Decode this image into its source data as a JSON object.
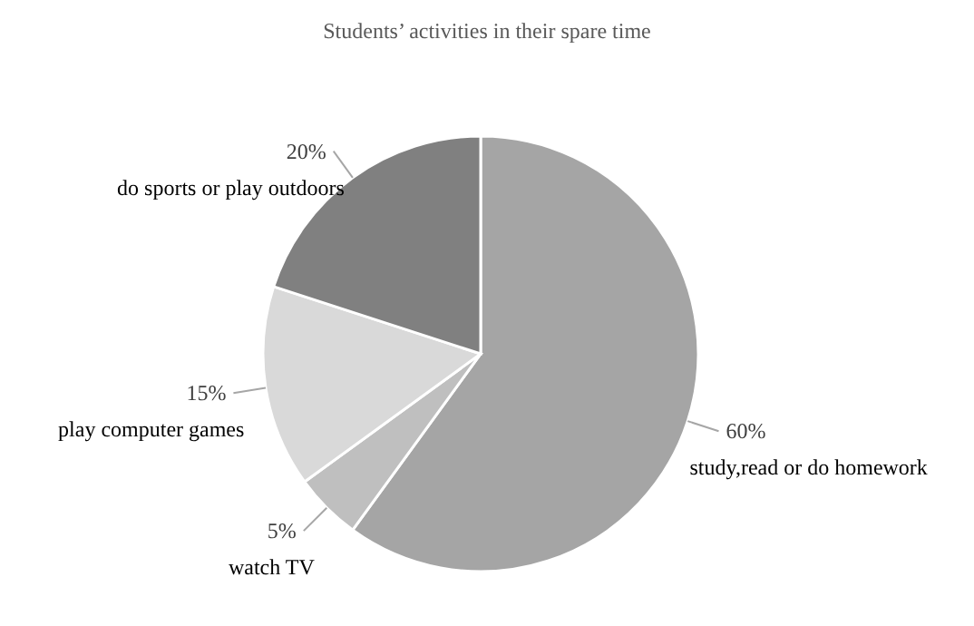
{
  "chart_data": {
    "type": "pie",
    "title": "Students’ activities in their spare time",
    "categories": [
      "study,read or do homework",
      "watch TV",
      "play computer games",
      "do sports or play outdoors"
    ],
    "values": [
      60,
      5,
      15,
      20
    ],
    "value_labels": [
      "60%",
      "5%",
      "15%",
      "20%"
    ],
    "colors": [
      "#a5a5a5",
      "#bfbfbf",
      "#d9d9d9",
      "#808080"
    ]
  }
}
